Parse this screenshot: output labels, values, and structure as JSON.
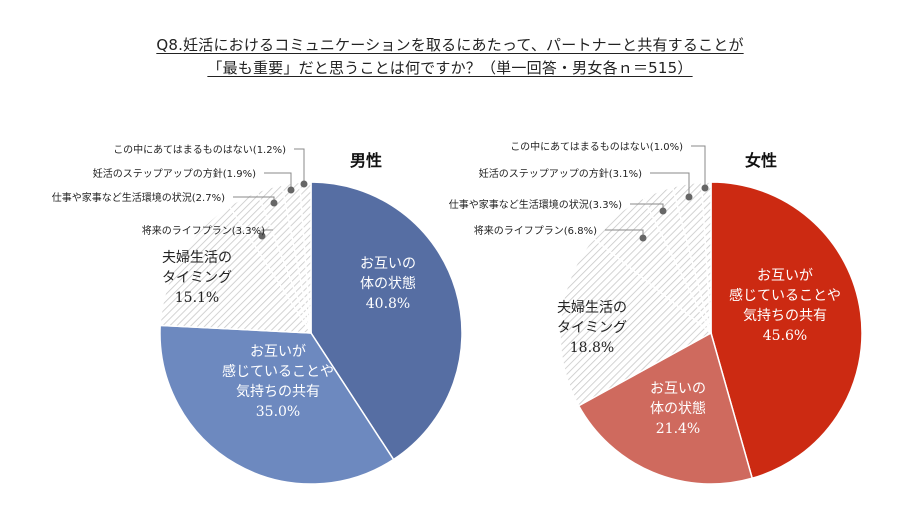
{
  "title_line1": "Q8.妊活におけるコミュニケーションを取るにあたって、パートナーと共有することが",
  "title_line2": "「最も重要」だと思うことは何ですか？（単一回答・男女各ｎ＝515）",
  "chart_data": [
    {
      "type": "pie",
      "title": "男性",
      "slices": [
        {
          "label": "お互いの\n体の状態",
          "value": 40.8,
          "value_text": "40.8%",
          "color": "#566ea3",
          "inside": true
        },
        {
          "label": "お互いが\n感じていることや\n気持ちの共有",
          "value": 35.0,
          "value_text": "35.0%",
          "color": "#6d89bf",
          "inside": true
        },
        {
          "label": "夫婦生活の\nタイミング",
          "value": 15.1,
          "value_text": "15.1%",
          "color": "hatch",
          "inside": true
        },
        {
          "label": "将来のライフプラン",
          "value": 3.3,
          "value_text": "(3.3%)",
          "color": "hatch",
          "inside": false
        },
        {
          "label": "仕事や家事など生活環境の状況",
          "value": 2.7,
          "value_text": "(2.7%)",
          "color": "hatch",
          "inside": false
        },
        {
          "label": "妊活のステップアップの方針",
          "value": 1.9,
          "value_text": "(1.9%)",
          "color": "hatch",
          "inside": false
        },
        {
          "label": "この中にあてはまるものはない",
          "value": 1.2,
          "value_text": "(1.2%)",
          "color": "hatch",
          "inside": false
        }
      ]
    },
    {
      "type": "pie",
      "title": "女性",
      "slices": [
        {
          "label": "お互いが\n感じていることや\n気持ちの共有",
          "value": 45.6,
          "value_text": "45.6%",
          "color": "#cc2a12",
          "inside": true
        },
        {
          "label": "お互いの\n体の状態",
          "value": 21.4,
          "value_text": "21.4%",
          "color": "#cf6a5e",
          "inside": true
        },
        {
          "label": "夫婦生活の\nタイミング",
          "value": 18.8,
          "value_text": "18.8%",
          "color": "hatch",
          "inside": true
        },
        {
          "label": "将来のライフプラン",
          "value": 6.8,
          "value_text": "(6.8%)",
          "color": "hatch",
          "inside": false
        },
        {
          "label": "仕事や家事など生活環境の状況",
          "value": 3.3,
          "value_text": "(3.3%)",
          "color": "hatch",
          "inside": false
        },
        {
          "label": "妊活のステップアップの方針",
          "value": 3.1,
          "value_text": "(3.1%)",
          "color": "hatch",
          "inside": false
        },
        {
          "label": "この中にあてはまるものはない",
          "value": 1.0,
          "value_text": "(1.0%)",
          "color": "hatch",
          "inside": false
        }
      ]
    }
  ]
}
